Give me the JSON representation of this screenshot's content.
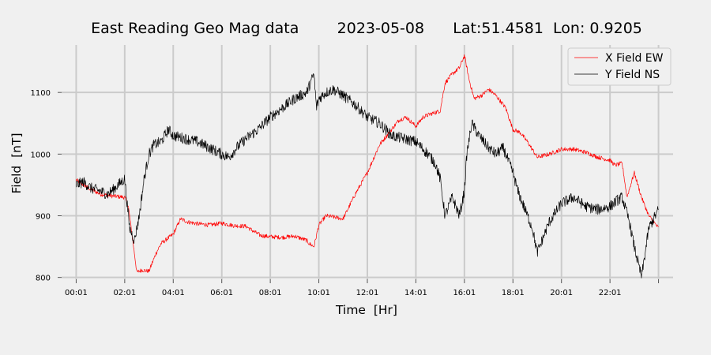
{
  "chart_data": {
    "type": "line",
    "title": "East Reading Geo Mag data        2023-05-08      Lat:51.4581  Lon: 0.9205",
    "xlabel": "Time  [Hr]",
    "ylabel": "Field  [nT]",
    "x_ticks": [
      "00:01",
      "02:01",
      "04:01",
      "06:01",
      "08:01",
      "10:01",
      "12:01",
      "14:01",
      "16:01",
      "18:01",
      "20:01",
      "22:01"
    ],
    "y_ticks": [
      800,
      900,
      1000,
      1100
    ],
    "xlim": [
      -0.6,
      24.6
    ],
    "ylim": [
      797,
      1177
    ],
    "grid": true,
    "legend_position": "top-right",
    "series": [
      {
        "name": "X Field EW",
        "color": "#ff0000",
        "x": [
          0,
          0.5,
          1,
          1.5,
          2,
          2.15,
          2.3,
          2.5,
          2.7,
          3,
          3.3,
          3.5,
          4,
          4.3,
          4.6,
          5,
          5.5,
          6,
          6.5,
          7,
          7.3,
          7.6,
          8,
          8.5,
          9,
          9.5,
          9.6,
          9.8,
          10,
          10.3,
          10.6,
          11,
          11.5,
          12,
          12.5,
          13,
          13.3,
          13.6,
          14,
          14.3,
          14.6,
          15,
          15.2,
          15.5,
          15.8,
          16,
          16.2,
          16.4,
          16.7,
          17,
          17.3,
          17.7,
          18,
          18.3,
          18.6,
          19,
          19.5,
          20,
          20.5,
          21,
          21.5,
          22,
          22.2,
          22.5,
          22.7,
          23,
          23.3,
          23.6,
          24
        ],
        "y": [
          958,
          945,
          935,
          932,
          930,
          915,
          870,
          808,
          812,
          810,
          840,
          855,
          870,
          895,
          890,
          887,
          885,
          888,
          884,
          883,
          875,
          868,
          866,
          865,
          867,
          860,
          855,
          850,
          885,
          900,
          898,
          895,
          935,
          970,
          1015,
          1040,
          1055,
          1060,
          1045,
          1060,
          1065,
          1070,
          1115,
          1130,
          1140,
          1160,
          1120,
          1090,
          1095,
          1105,
          1095,
          1075,
          1040,
          1035,
          1020,
          995,
          1000,
          1008,
          1008,
          1003,
          995,
          990,
          982,
          985,
          930,
          970,
          930,
          900,
          880
        ]
      },
      {
        "name": "Y Field NS",
        "color": "#000000",
        "x": [
          0,
          0.3,
          0.6,
          1,
          1.3,
          1.6,
          2,
          2.2,
          2.4,
          2.6,
          2.8,
          3,
          3.2,
          3.5,
          3.8,
          4,
          4.5,
          5,
          5.5,
          6,
          6.3,
          6.6,
          7,
          7.5,
          8,
          8.5,
          9,
          9.5,
          9.7,
          9.8,
          9.9,
          10,
          10.3,
          10.6,
          11,
          11.5,
          12,
          12.5,
          13,
          13.5,
          14,
          14.5,
          14.8,
          15,
          15.2,
          15.5,
          15.8,
          16,
          16.1,
          16.3,
          16.6,
          17,
          17.3,
          17.6,
          18,
          18.2,
          18.5,
          18.8,
          19,
          19.2,
          19.5,
          20,
          20.5,
          21,
          21.5,
          22,
          22.3,
          22.5,
          22.8,
          23,
          23.3,
          23.6,
          24
        ],
        "y": [
          950,
          955,
          945,
          940,
          935,
          945,
          960,
          880,
          860,
          900,
          960,
          1000,
          1015,
          1020,
          1040,
          1030,
          1025,
          1020,
          1010,
          1000,
          995,
          1010,
          1025,
          1040,
          1060,
          1075,
          1090,
          1100,
          1120,
          1130,
          1075,
          1090,
          1100,
          1105,
          1095,
          1080,
          1060,
          1050,
          1030,
          1025,
          1020,
          1000,
          985,
          960,
          900,
          930,
          900,
          940,
          1000,
          1050,
          1030,
          1010,
          1000,
          1010,
          970,
          940,
          910,
          880,
          840,
          860,
          890,
          920,
          930,
          915,
          910,
          915,
          925,
          930,
          890,
          850,
          800,
          880,
          910
        ]
      }
    ]
  }
}
